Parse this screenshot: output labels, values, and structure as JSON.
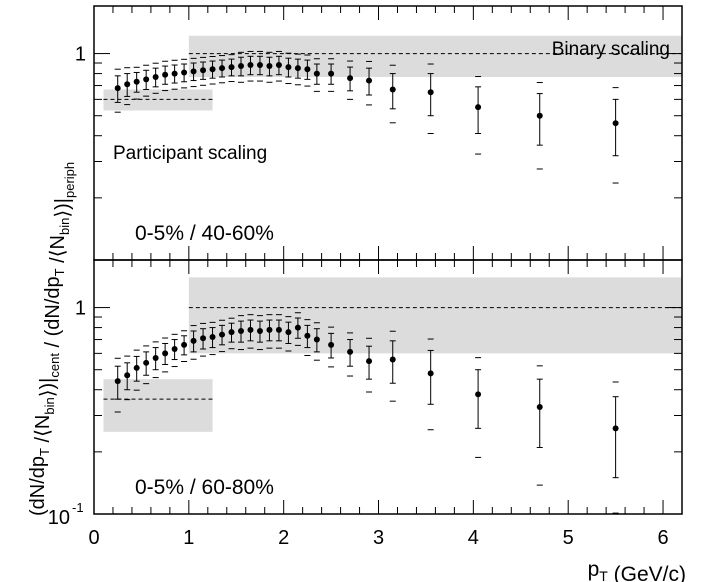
{
  "chart_data": [
    {
      "type": "scatter",
      "panel": "top",
      "panel_label": "0-5% / 40-60%",
      "ylabel": "/ (dN/dp_T /⟨N_bin⟩)|_periph",
      "yscale": "log",
      "ylim": [
        0.1,
        1.7
      ],
      "xlim": [
        0,
        6.2
      ],
      "bands": [
        {
          "name": "Binary scaling",
          "x_range": [
            1.0,
            6.2
          ],
          "center": 1.0,
          "low": 0.77,
          "high": 1.22
        },
        {
          "name": "Participant scaling",
          "x_range": [
            0.1,
            1.25
          ],
          "center": 0.6,
          "low": 0.53,
          "high": 0.67
        }
      ],
      "points": [
        {
          "x": 0.25,
          "y": 0.68,
          "err": 0.1
        },
        {
          "x": 0.35,
          "y": 0.71,
          "err": 0.09
        },
        {
          "x": 0.45,
          "y": 0.73,
          "err": 0.08
        },
        {
          "x": 0.55,
          "y": 0.75,
          "err": 0.08
        },
        {
          "x": 0.65,
          "y": 0.77,
          "err": 0.08
        },
        {
          "x": 0.75,
          "y": 0.79,
          "err": 0.08
        },
        {
          "x": 0.85,
          "y": 0.8,
          "err": 0.08
        },
        {
          "x": 0.95,
          "y": 0.81,
          "err": 0.08
        },
        {
          "x": 1.05,
          "y": 0.82,
          "err": 0.08
        },
        {
          "x": 1.15,
          "y": 0.83,
          "err": 0.08
        },
        {
          "x": 1.25,
          "y": 0.84,
          "err": 0.08
        },
        {
          "x": 1.35,
          "y": 0.85,
          "err": 0.08
        },
        {
          "x": 1.45,
          "y": 0.86,
          "err": 0.08
        },
        {
          "x": 1.55,
          "y": 0.87,
          "err": 0.09
        },
        {
          "x": 1.65,
          "y": 0.88,
          "err": 0.09
        },
        {
          "x": 1.75,
          "y": 0.88,
          "err": 0.09
        },
        {
          "x": 1.85,
          "y": 0.87,
          "err": 0.09
        },
        {
          "x": 1.95,
          "y": 0.88,
          "err": 0.09
        },
        {
          "x": 2.05,
          "y": 0.86,
          "err": 0.09
        },
        {
          "x": 2.15,
          "y": 0.85,
          "err": 0.09
        },
        {
          "x": 2.25,
          "y": 0.84,
          "err": 0.09
        },
        {
          "x": 2.35,
          "y": 0.8,
          "err": 0.09
        },
        {
          "x": 2.5,
          "y": 0.8,
          "err": 0.09
        },
        {
          "x": 2.7,
          "y": 0.76,
          "err": 0.1
        },
        {
          "x": 2.9,
          "y": 0.74,
          "err": 0.11
        },
        {
          "x": 3.15,
          "y": 0.67,
          "err": 0.13
        },
        {
          "x": 3.55,
          "y": 0.65,
          "err": 0.15
        },
        {
          "x": 4.05,
          "y": 0.55,
          "err": 0.14
        },
        {
          "x": 4.7,
          "y": 0.5,
          "err": 0.14
        },
        {
          "x": 5.5,
          "y": 0.46,
          "err": 0.14
        }
      ]
    },
    {
      "type": "scatter",
      "panel": "bottom",
      "panel_label": "0-5% / 60-80%",
      "ylabel": "(dN/dp_T /⟨N_bin⟩)|_cent",
      "xlabel": "p_T (GeV/c)",
      "yscale": "log",
      "ylim": [
        0.1,
        1.7
      ],
      "xlim": [
        0,
        6.2
      ],
      "x_ticks": [
        "0",
        "1",
        "2",
        "3",
        "4",
        "5",
        "6"
      ],
      "bands": [
        {
          "name": "Binary scaling",
          "x_range": [
            1.0,
            6.2
          ],
          "center": 1.0,
          "low": 0.6,
          "high": 1.4
        },
        {
          "name": "Participant scaling",
          "x_range": [
            0.1,
            1.25
          ],
          "center": 0.36,
          "low": 0.25,
          "high": 0.45
        }
      ],
      "points": [
        {
          "x": 0.25,
          "y": 0.44,
          "err": 0.08
        },
        {
          "x": 0.35,
          "y": 0.47,
          "err": 0.07
        },
        {
          "x": 0.45,
          "y": 0.51,
          "err": 0.07
        },
        {
          "x": 0.55,
          "y": 0.54,
          "err": 0.07
        },
        {
          "x": 0.65,
          "y": 0.57,
          "err": 0.07
        },
        {
          "x": 0.75,
          "y": 0.6,
          "err": 0.07
        },
        {
          "x": 0.85,
          "y": 0.63,
          "err": 0.07
        },
        {
          "x": 0.95,
          "y": 0.66,
          "err": 0.07
        },
        {
          "x": 1.05,
          "y": 0.69,
          "err": 0.08
        },
        {
          "x": 1.15,
          "y": 0.71,
          "err": 0.08
        },
        {
          "x": 1.25,
          "y": 0.72,
          "err": 0.08
        },
        {
          "x": 1.35,
          "y": 0.74,
          "err": 0.08
        },
        {
          "x": 1.45,
          "y": 0.76,
          "err": 0.08
        },
        {
          "x": 1.55,
          "y": 0.77,
          "err": 0.09
        },
        {
          "x": 1.65,
          "y": 0.78,
          "err": 0.09
        },
        {
          "x": 1.75,
          "y": 0.77,
          "err": 0.09
        },
        {
          "x": 1.85,
          "y": 0.78,
          "err": 0.09
        },
        {
          "x": 1.95,
          "y": 0.78,
          "err": 0.09
        },
        {
          "x": 2.05,
          "y": 0.76,
          "err": 0.09
        },
        {
          "x": 2.15,
          "y": 0.8,
          "err": 0.09
        },
        {
          "x": 2.25,
          "y": 0.73,
          "err": 0.09
        },
        {
          "x": 2.35,
          "y": 0.7,
          "err": 0.09
        },
        {
          "x": 2.5,
          "y": 0.66,
          "err": 0.09
        },
        {
          "x": 2.7,
          "y": 0.61,
          "err": 0.09
        },
        {
          "x": 2.9,
          "y": 0.55,
          "err": 0.1
        },
        {
          "x": 3.15,
          "y": 0.56,
          "err": 0.13
        },
        {
          "x": 3.55,
          "y": 0.48,
          "err": 0.14
        },
        {
          "x": 4.05,
          "y": 0.38,
          "err": 0.12
        },
        {
          "x": 4.7,
          "y": 0.33,
          "err": 0.12
        },
        {
          "x": 5.5,
          "y": 0.26,
          "err": 0.11
        }
      ]
    }
  ]
}
